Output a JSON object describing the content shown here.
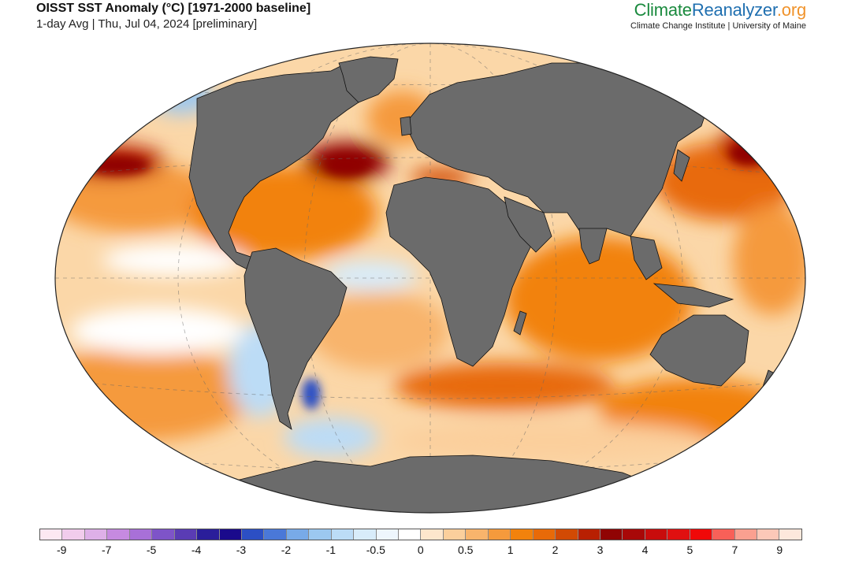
{
  "header": {
    "title": "OISST SST Anomaly (°C) [1971-2000 baseline]",
    "subtitle": "1-day Avg | Thu, Jul 04, 2024 [preliminary]"
  },
  "brand": {
    "part_a": "Climate",
    "part_b": "Reanalyzer",
    "part_c": ".org",
    "subtitle": "Climate Change Institute | University of Maine"
  },
  "colors": {
    "land": "#6b6b6b",
    "ocean_base": "#fbd7a8",
    "warm_strong": "#b50f0f",
    "warm": "#f58a0b",
    "cool": "#9cc8f0",
    "cold": "#2c4fc4"
  },
  "legend": {
    "colors": [
      "#fde8f2",
      "#f1ccec",
      "#deb0e8",
      "#c68ae0",
      "#a870d8",
      "#7e54c8",
      "#5a3cb4",
      "#2a1e9a",
      "#1a0a8c",
      "#2c4fc4",
      "#4a78d8",
      "#78aae8",
      "#9cc8f0",
      "#bcdcf6",
      "#d8ecfa",
      "#eef6fd",
      "#ffffff",
      "#fde6cc",
      "#fbcf9c",
      "#f8b46c",
      "#f59a3c",
      "#f2820c",
      "#e86a08",
      "#d24a04",
      "#b82002",
      "#900404",
      "#a80808",
      "#c80c0c",
      "#e01010",
      "#f00808",
      "#f86058",
      "#faa090",
      "#fcc8b8",
      "#fde8dc"
    ],
    "labels": [
      "-9",
      "-7",
      "-5",
      "-4",
      "-3",
      "-2",
      "-1",
      "-0.5",
      "0",
      "0.5",
      "1",
      "2",
      "3",
      "4",
      "5",
      "7",
      "9"
    ]
  }
}
